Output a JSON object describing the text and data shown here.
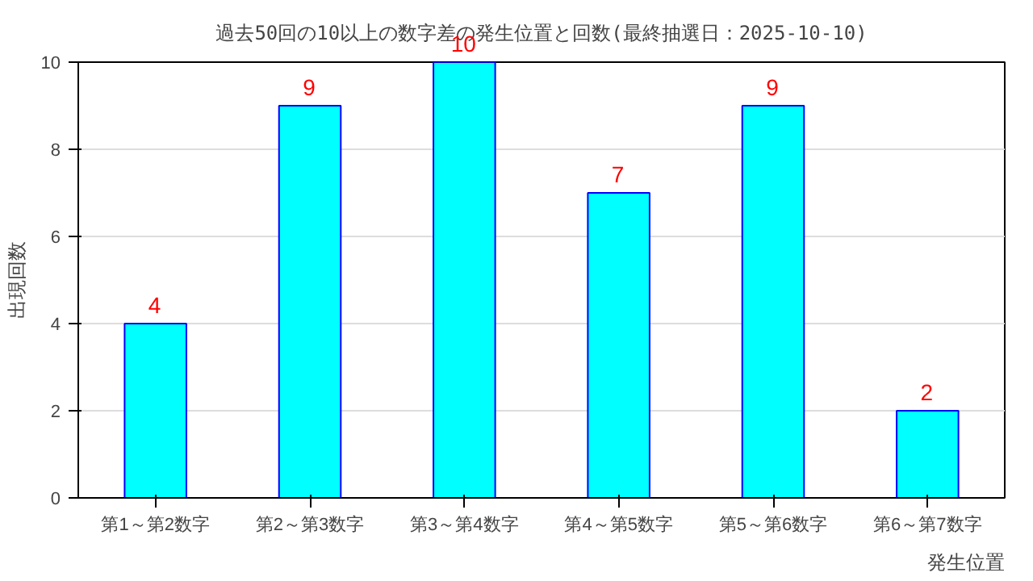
{
  "chart_data": {
    "type": "bar",
    "title": "過去50回の10以上の数字差の発生位置と回数(最終抽選日：2025-10-10)",
    "xlabel": "発生位置",
    "ylabel": "出現回数",
    "categories": [
      "第1～第2数字",
      "第2～第3数字",
      "第3～第4数字",
      "第4～第5数字",
      "第5～第6数字",
      "第6～第7数字"
    ],
    "values": [
      4,
      9,
      10,
      7,
      9,
      2
    ],
    "color": "#00ffff",
    "ylim": [
      0,
      10
    ],
    "yticks": [
      0,
      2,
      4,
      6,
      8,
      10
    ],
    "grid": "y",
    "data_labels": true
  }
}
